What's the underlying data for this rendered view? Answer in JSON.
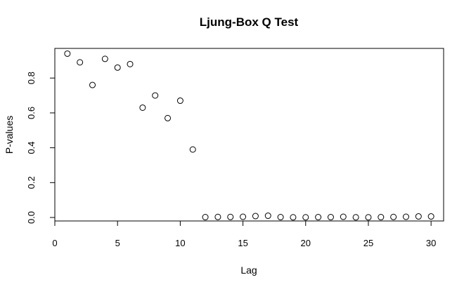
{
  "chart_data": {
    "type": "scatter",
    "title": "Ljung-Box Q Test",
    "xlabel": "Lag",
    "ylabel": "P-values",
    "xlim": [
      0,
      31
    ],
    "ylim": [
      -0.02,
      0.97
    ],
    "xticks": [
      0,
      5,
      10,
      15,
      20,
      25,
      30
    ],
    "yticks": [
      0.0,
      0.2,
      0.4,
      0.6,
      0.8
    ],
    "xtick_labels": [
      "0",
      "5",
      "10",
      "15",
      "20",
      "25",
      "30"
    ],
    "ytick_labels": [
      "0.0",
      "0.2",
      "0.4",
      "0.6",
      "0.8"
    ],
    "grid": false,
    "marker": "open-circle",
    "series": [
      {
        "x": [
          1,
          2,
          3,
          4,
          5,
          6,
          7,
          8,
          9,
          10,
          11,
          12,
          13,
          14,
          15,
          16,
          17,
          18,
          19,
          20,
          21,
          22,
          23,
          24,
          25,
          26,
          27,
          28,
          29,
          30
        ],
        "y": [
          0.94,
          0.89,
          0.76,
          0.91,
          0.86,
          0.88,
          0.63,
          0.7,
          0.57,
          0.67,
          0.39,
          0.002,
          0.003,
          0.003,
          0.004,
          0.008,
          0.01,
          0.002,
          0.001,
          0.001,
          0.002,
          0.002,
          0.004,
          0.001,
          0.001,
          0.002,
          0.003,
          0.004,
          0.006,
          0.006
        ]
      }
    ]
  }
}
